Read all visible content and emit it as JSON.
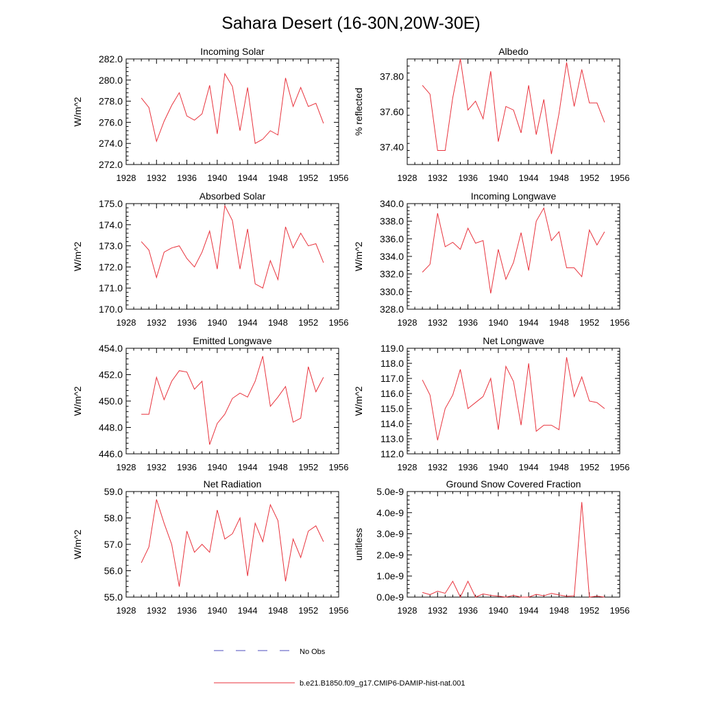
{
  "figure": {
    "title": "Sahara Desert (16-30N,20W-30E)"
  },
  "legend": {
    "placement": "bottom-center",
    "entries": [
      {
        "label": "No Obs",
        "color": "#4b4bbd",
        "dash": true
      },
      {
        "label": "b.e21.B1850.f09_g17.CMIP6-DAMIP-hist-nat.001",
        "color": "#e8313b",
        "dash": false
      }
    ]
  },
  "colors": {
    "series": "#e8313b",
    "axis": "#000000"
  },
  "chart_data": [
    {
      "type": "line",
      "title": "Incoming Solar",
      "ylabel": "W/m^2",
      "xlim": [
        1928,
        1956
      ],
      "ylim": [
        272,
        282
      ],
      "xticks": [
        1928,
        1932,
        1936,
        1940,
        1944,
        1948,
        1952,
        1956
      ],
      "xtick_labels": [
        "1928",
        "1932",
        "1936",
        "1940",
        "1944",
        "1948",
        "1952",
        "1956"
      ],
      "yticks": [
        272,
        274,
        276,
        278,
        280,
        282
      ],
      "ytick_labels": [
        "272.0",
        "274.0",
        "276.0",
        "278.0",
        "280.0",
        "282.0"
      ],
      "x": [
        1930,
        1931,
        1932,
        1933,
        1934,
        1935,
        1936,
        1937,
        1938,
        1939,
        1940,
        1941,
        1942,
        1943,
        1944,
        1945,
        1946,
        1947,
        1948,
        1949,
        1950,
        1951,
        1952,
        1953,
        1954
      ],
      "series": [
        {
          "values": [
            278.3,
            277.4,
            274.2,
            276.1,
            277.6,
            278.8,
            276.6,
            276.2,
            276.8,
            279.5,
            274.9,
            280.6,
            279.4,
            275.2,
            279.3,
            274.0,
            274.4,
            275.2,
            274.8,
            280.2,
            277.5,
            279.3,
            277.5,
            277.8,
            275.9
          ]
        }
      ]
    },
    {
      "type": "line",
      "title": "Albedo",
      "ylabel": "% reflected",
      "xlim": [
        1928,
        1956
      ],
      "ylim": [
        37.3,
        37.9
      ],
      "xticks": [
        1928,
        1932,
        1936,
        1940,
        1944,
        1948,
        1952,
        1956
      ],
      "xtick_labels": [
        "1928",
        "1932",
        "1936",
        "1940",
        "1944",
        "1948",
        "1952",
        "1956"
      ],
      "yticks": [
        37.4,
        37.6,
        37.8
      ],
      "ytick_labels": [
        "37.40",
        "37.60",
        "37.80"
      ],
      "x": [
        1930,
        1931,
        1932,
        1933,
        1934,
        1935,
        1936,
        1937,
        1938,
        1939,
        1940,
        1941,
        1942,
        1943,
        1944,
        1945,
        1946,
        1947,
        1948,
        1949,
        1950,
        1951,
        1952,
        1953,
        1954
      ],
      "series": [
        {
          "values": [
            37.75,
            37.7,
            37.38,
            37.38,
            37.68,
            37.9,
            37.61,
            37.66,
            37.56,
            37.83,
            37.43,
            37.63,
            37.61,
            37.48,
            37.75,
            37.47,
            37.67,
            37.36,
            37.59,
            37.88,
            37.63,
            37.84,
            37.65,
            37.65,
            37.54
          ]
        }
      ]
    },
    {
      "type": "line",
      "title": "Absorbed Solar",
      "ylabel": "W/m^2",
      "xlim": [
        1928,
        1956
      ],
      "ylim": [
        170,
        175
      ],
      "xticks": [
        1928,
        1932,
        1936,
        1940,
        1944,
        1948,
        1952,
        1956
      ],
      "xtick_labels": [
        "1928",
        "1932",
        "1936",
        "1940",
        "1944",
        "1948",
        "1952",
        "1956"
      ],
      "yticks": [
        170,
        171,
        172,
        173,
        174,
        175
      ],
      "ytick_labels": [
        "170.0",
        "171.0",
        "172.0",
        "173.0",
        "174.0",
        "175.0"
      ],
      "x": [
        1930,
        1931,
        1932,
        1933,
        1934,
        1935,
        1936,
        1937,
        1938,
        1939,
        1940,
        1941,
        1942,
        1943,
        1944,
        1945,
        1946,
        1947,
        1948,
        1949,
        1950,
        1951,
        1952,
        1953,
        1954
      ],
      "series": [
        {
          "values": [
            173.2,
            172.8,
            171.5,
            172.7,
            172.9,
            173.0,
            172.4,
            172.0,
            172.7,
            173.7,
            171.9,
            174.9,
            174.2,
            171.9,
            173.8,
            171.2,
            171.0,
            172.3,
            171.4,
            173.9,
            172.9,
            173.6,
            173.0,
            173.1,
            172.2
          ]
        }
      ]
    },
    {
      "type": "line",
      "title": "Incoming Longwave",
      "ylabel": "W/m^2",
      "xlim": [
        1928,
        1956
      ],
      "ylim": [
        328,
        340
      ],
      "xticks": [
        1928,
        1932,
        1936,
        1940,
        1944,
        1948,
        1952,
        1956
      ],
      "xtick_labels": [
        "1928",
        "1932",
        "1936",
        "1940",
        "1944",
        "1948",
        "1952",
        "1956"
      ],
      "yticks": [
        328,
        330,
        332,
        334,
        336,
        338,
        340
      ],
      "ytick_labels": [
        "328.0",
        "330.0",
        "332.0",
        "334.0",
        "336.0",
        "338.0",
        "340.0"
      ],
      "x": [
        1930,
        1931,
        1932,
        1933,
        1934,
        1935,
        1936,
        1937,
        1938,
        1939,
        1940,
        1941,
        1942,
        1943,
        1944,
        1945,
        1946,
        1947,
        1948,
        1949,
        1950,
        1951,
        1952,
        1953,
        1954
      ],
      "series": [
        {
          "values": [
            332.2,
            333.1,
            338.9,
            335.1,
            335.6,
            334.8,
            337.2,
            335.5,
            335.8,
            329.8,
            334.8,
            331.4,
            333.3,
            336.7,
            332.4,
            338.0,
            339.5,
            335.8,
            336.8,
            332.7,
            332.7,
            331.7,
            337.0,
            335.3,
            336.8
          ]
        }
      ]
    },
    {
      "type": "line",
      "title": "Emitted Longwave",
      "ylabel": "W/m^2",
      "xlim": [
        1928,
        1956
      ],
      "ylim": [
        446,
        454
      ],
      "xticks": [
        1928,
        1932,
        1936,
        1940,
        1944,
        1948,
        1952,
        1956
      ],
      "xtick_labels": [
        "1928",
        "1932",
        "1936",
        "1940",
        "1944",
        "1948",
        "1952",
        "1956"
      ],
      "yticks": [
        446,
        448,
        450,
        452,
        454
      ],
      "ytick_labels": [
        "446.0",
        "448.0",
        "450.0",
        "452.0",
        "454.0"
      ],
      "x": [
        1930,
        1931,
        1932,
        1933,
        1934,
        1935,
        1936,
        1937,
        1938,
        1939,
        1940,
        1941,
        1942,
        1943,
        1944,
        1945,
        1946,
        1947,
        1948,
        1949,
        1950,
        1951,
        1952,
        1953,
        1954
      ],
      "series": [
        {
          "values": [
            449.0,
            449.0,
            451.8,
            450.1,
            451.5,
            452.3,
            452.2,
            450.9,
            451.5,
            446.7,
            448.3,
            449.0,
            450.2,
            450.6,
            450.3,
            451.5,
            453.4,
            449.6,
            450.3,
            451.1,
            448.4,
            448.7,
            452.6,
            450.7,
            451.8
          ]
        }
      ]
    },
    {
      "type": "line",
      "title": "Net Longwave",
      "ylabel": "W/m^2",
      "xlim": [
        1928,
        1956
      ],
      "ylim": [
        112,
        119
      ],
      "xticks": [
        1928,
        1932,
        1936,
        1940,
        1944,
        1948,
        1952,
        1956
      ],
      "xtick_labels": [
        "1928",
        "1932",
        "1936",
        "1940",
        "1944",
        "1948",
        "1952",
        "1956"
      ],
      "yticks": [
        112,
        113,
        114,
        115,
        116,
        117,
        118,
        119
      ],
      "ytick_labels": [
        "112.0",
        "113.0",
        "114.0",
        "115.0",
        "116.0",
        "117.0",
        "118.0",
        "119.0"
      ],
      "x": [
        1930,
        1931,
        1932,
        1933,
        1934,
        1935,
        1936,
        1937,
        1938,
        1939,
        1940,
        1941,
        1942,
        1943,
        1944,
        1945,
        1946,
        1947,
        1948,
        1949,
        1950,
        1951,
        1952,
        1953,
        1954
      ],
      "series": [
        {
          "values": [
            116.9,
            115.9,
            112.9,
            115.0,
            115.9,
            117.6,
            115.0,
            115.4,
            115.8,
            117.0,
            113.6,
            117.8,
            116.8,
            113.9,
            118.0,
            113.5,
            113.9,
            113.9,
            113.6,
            118.4,
            115.8,
            117.1,
            115.5,
            115.4,
            115.0
          ]
        }
      ]
    },
    {
      "type": "line",
      "title": "Net Radiation",
      "ylabel": "W/m^2",
      "xlim": [
        1928,
        1956
      ],
      "ylim": [
        55,
        59
      ],
      "xticks": [
        1928,
        1932,
        1936,
        1940,
        1944,
        1948,
        1952,
        1956
      ],
      "xtick_labels": [
        "1928",
        "1932",
        "1936",
        "1940",
        "1944",
        "1948",
        "1952",
        "1956"
      ],
      "yticks": [
        55,
        56,
        57,
        58,
        59
      ],
      "ytick_labels": [
        "55.0",
        "56.0",
        "57.0",
        "58.0",
        "59.0"
      ],
      "x": [
        1930,
        1931,
        1932,
        1933,
        1934,
        1935,
        1936,
        1937,
        1938,
        1939,
        1940,
        1941,
        1942,
        1943,
        1944,
        1945,
        1946,
        1947,
        1948,
        1949,
        1950,
        1951,
        1952,
        1953,
        1954
      ],
      "series": [
        {
          "values": [
            56.3,
            56.9,
            58.7,
            57.8,
            57.0,
            55.4,
            57.5,
            56.7,
            57.0,
            56.7,
            58.3,
            57.2,
            57.4,
            58.0,
            55.8,
            57.8,
            57.1,
            58.5,
            57.9,
            55.6,
            57.2,
            56.5,
            57.5,
            57.7,
            57.1
          ]
        }
      ]
    },
    {
      "type": "line",
      "title": "Ground Snow Covered Fraction",
      "ylabel": "unitless",
      "xlim": [
        1928,
        1956
      ],
      "ylim": [
        0,
        5e-09
      ],
      "xticks": [
        1928,
        1932,
        1936,
        1940,
        1944,
        1948,
        1952,
        1956
      ],
      "xtick_labels": [
        "1928",
        "1932",
        "1936",
        "1940",
        "1944",
        "1948",
        "1952",
        "1956"
      ],
      "yticks": [
        0,
        1e-09,
        2e-09,
        3e-09,
        4e-09,
        5e-09
      ],
      "ytick_labels": [
        "0.0e-9",
        "1.0e-9",
        "2.0e-9",
        "3.0e-9",
        "4.0e-9",
        "5.0e-9"
      ],
      "x": [
        1930,
        1931,
        1932,
        1933,
        1934,
        1935,
        1936,
        1937,
        1938,
        1939,
        1940,
        1941,
        1942,
        1943,
        1944,
        1945,
        1946,
        1947,
        1948,
        1949,
        1950,
        1951,
        1952,
        1953,
        1954
      ],
      "series": [
        {
          "values": [
            2.2e-10,
            1.2e-10,
            2.8e-10,
            1.8e-10,
            7.5e-10,
            0,
            7.5e-10,
            0,
            1.5e-10,
            8e-11,
            5e-11,
            0,
            8e-11,
            0,
            0,
            1.3e-10,
            6e-11,
            1.8e-10,
            1e-10,
            4e-11,
            6e-11,
            4.5e-09,
            0,
            5e-11,
            0
          ]
        }
      ]
    }
  ]
}
